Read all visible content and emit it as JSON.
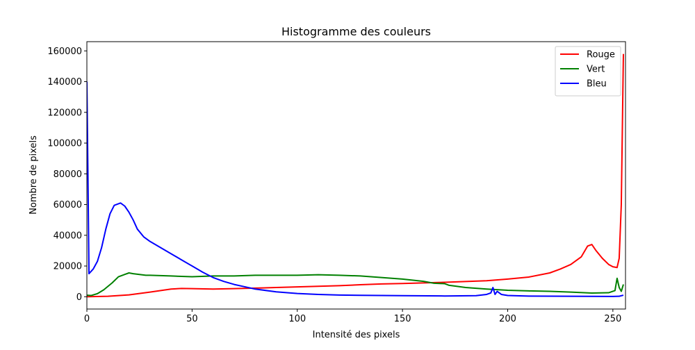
{
  "chart_data": {
    "type": "line",
    "title": "Histogramme des couleurs",
    "xlabel": "Intensité des pixels",
    "ylabel": "Nombre de pixels",
    "xlim": [
      0,
      256
    ],
    "ylim": [
      -8000,
      166000
    ],
    "x_ticks": [
      0,
      50,
      100,
      150,
      200,
      250
    ],
    "y_ticks": [
      0,
      20000,
      40000,
      60000,
      80000,
      100000,
      120000,
      140000,
      160000
    ],
    "grid": false,
    "legend_position": "top-right",
    "series": [
      {
        "name": "Rouge",
        "color": "#ff0000",
        "points": [
          [
            0,
            0
          ],
          [
            10,
            300
          ],
          [
            20,
            1200
          ],
          [
            30,
            3000
          ],
          [
            40,
            5000
          ],
          [
            45,
            5400
          ],
          [
            50,
            5300
          ],
          [
            60,
            5000
          ],
          [
            70,
            5300
          ],
          [
            80,
            5600
          ],
          [
            90,
            6000
          ],
          [
            100,
            6400
          ],
          [
            110,
            6800
          ],
          [
            120,
            7200
          ],
          [
            130,
            7800
          ],
          [
            140,
            8300
          ],
          [
            150,
            8600
          ],
          [
            160,
            9000
          ],
          [
            170,
            9400
          ],
          [
            180,
            9900
          ],
          [
            190,
            10400
          ],
          [
            200,
            11500
          ],
          [
            210,
            12800
          ],
          [
            220,
            15500
          ],
          [
            225,
            18000
          ],
          [
            230,
            21000
          ],
          [
            235,
            26000
          ],
          [
            238,
            33000
          ],
          [
            240,
            34000
          ],
          [
            242,
            30000
          ],
          [
            245,
            25000
          ],
          [
            248,
            21000
          ],
          [
            250,
            19500
          ],
          [
            252,
            19000
          ],
          [
            253,
            25000
          ],
          [
            254,
            60000
          ],
          [
            255,
            158000
          ]
        ]
      },
      {
        "name": "Vert",
        "color": "#008000",
        "points": [
          [
            0,
            1000
          ],
          [
            2,
            800
          ],
          [
            5,
            2000
          ],
          [
            8,
            4500
          ],
          [
            12,
            9000
          ],
          [
            15,
            13000
          ],
          [
            18,
            14500
          ],
          [
            20,
            15500
          ],
          [
            22,
            15000
          ],
          [
            25,
            14500
          ],
          [
            28,
            14000
          ],
          [
            30,
            14000
          ],
          [
            40,
            13500
          ],
          [
            50,
            13000
          ],
          [
            60,
            13500
          ],
          [
            70,
            13500
          ],
          [
            80,
            14000
          ],
          [
            90,
            14000
          ],
          [
            100,
            14000
          ],
          [
            110,
            14300
          ],
          [
            120,
            14000
          ],
          [
            130,
            13500
          ],
          [
            140,
            12500
          ],
          [
            150,
            11500
          ],
          [
            160,
            10000
          ],
          [
            165,
            8800
          ],
          [
            170,
            8500
          ],
          [
            172,
            7500
          ],
          [
            180,
            6000
          ],
          [
            190,
            5000
          ],
          [
            200,
            4200
          ],
          [
            210,
            3800
          ],
          [
            220,
            3500
          ],
          [
            230,
            3000
          ],
          [
            240,
            2400
          ],
          [
            248,
            2600
          ],
          [
            251,
            4000
          ],
          [
            252,
            12000
          ],
          [
            253,
            6000
          ],
          [
            254,
            3500
          ],
          [
            255,
            8000
          ]
        ]
      },
      {
        "name": "Bleu",
        "color": "#0000ff",
        "points": [
          [
            0,
            140000
          ],
          [
            0.5,
            80000
          ],
          [
            1,
            15000
          ],
          [
            3,
            18000
          ],
          [
            5,
            23000
          ],
          [
            7,
            32000
          ],
          [
            9,
            44000
          ],
          [
            11,
            54000
          ],
          [
            13,
            59500
          ],
          [
            15,
            60500
          ],
          [
            16,
            61000
          ],
          [
            18,
            59000
          ],
          [
            20,
            55000
          ],
          [
            22,
            50000
          ],
          [
            24,
            44000
          ],
          [
            27,
            39000
          ],
          [
            30,
            36000
          ],
          [
            35,
            32000
          ],
          [
            40,
            28000
          ],
          [
            45,
            24000
          ],
          [
            50,
            20000
          ],
          [
            55,
            16000
          ],
          [
            60,
            12500
          ],
          [
            65,
            10000
          ],
          [
            70,
            8000
          ],
          [
            75,
            6500
          ],
          [
            80,
            5000
          ],
          [
            90,
            3200
          ],
          [
            100,
            2100
          ],
          [
            110,
            1500
          ],
          [
            120,
            1100
          ],
          [
            130,
            900
          ],
          [
            150,
            700
          ],
          [
            170,
            500
          ],
          [
            185,
            700
          ],
          [
            190,
            1500
          ],
          [
            192,
            2500
          ],
          [
            193,
            6000
          ],
          [
            194,
            1500
          ],
          [
            195,
            3500
          ],
          [
            197,
            1500
          ],
          [
            200,
            800
          ],
          [
            210,
            400
          ],
          [
            230,
            300
          ],
          [
            250,
            200
          ],
          [
            253,
            300
          ],
          [
            255,
            1000
          ]
        ]
      }
    ]
  }
}
